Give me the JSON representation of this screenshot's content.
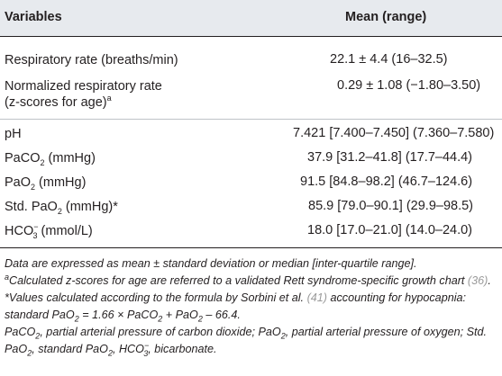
{
  "table": {
    "header": {
      "col1": "Variables",
      "col2": "Mean (range)"
    },
    "rows": [
      {
        "label": "Respiratory rate (breaths/min)",
        "value": "22.1 ± 4.4 (16–32.5)"
      },
      {
        "label_line1": "Normalized respiratory rate",
        "label_line2": "(z-scores for age)",
        "label_sup": "a",
        "value": "0.29 ± 1.08 (−1.80–3.50)"
      },
      {
        "label": "pH",
        "value": "7.421 [7.400–7.450] (7.360–7.580)"
      },
      {
        "label_pre": "PaCO",
        "label_sub": "2",
        "label_post": " (mmHg)",
        "value": "37.9 [31.2–41.8] (17.7–44.4)"
      },
      {
        "label_pre": "PaO",
        "label_sub": "2",
        "label_post": " (mmHg)",
        "value": "91.5 [84.8–98.2] (46.7–124.6)"
      },
      {
        "label_pre": "Std. PaO",
        "label_sub": "2",
        "label_post": " (mmHg)*",
        "value": "85.9 [79.0–90.1] (29.9–98.5)"
      },
      {
        "label_pre": "HCO",
        "label_sub": "3",
        "label_sup": "−",
        "label_post": " (mmol/L)",
        "value": "18.0 [17.0–21.0] (14.0–24.0)"
      }
    ]
  },
  "notes": {
    "n1": "Data are expressed as mean ± standard deviation or median [inter-quartile range].",
    "n2_sup": "a",
    "n2_text": "Calculated z-scores for age are referred to a validated Rett syndrome-specific growth chart",
    "n2_ref": "(36)",
    "n3_a": "*Values calculated according to the formula by Sorbini et al.",
    "n3_ref": "(41)",
    "n3_b": "accounting for hypocapnia: standard PaO",
    "n3_c": " = 1.66 × PaCO",
    "n3_d": " + PaO",
    "n3_e": " – 66.4.",
    "sub2": "2",
    "n4_a": "PaCO",
    "n4_b": ", partial arterial pressure of carbon dioxide; PaO",
    "n4_c": ", partial arterial pressure of oxygen; Std. PaO",
    "n4_d": ", standard PaO",
    "n4_e": ", HCO",
    "n4_sub3": "3",
    "n4_supminus": "−",
    "n4_f": ", bicarbonate."
  }
}
